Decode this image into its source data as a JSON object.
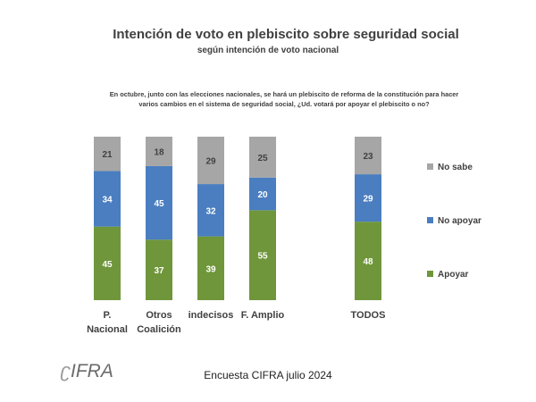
{
  "header": {
    "title": "Intención de voto en plebiscito sobre seguridad social",
    "subtitle": "según intención de voto nacional",
    "question": "En octubre, junto con las elecciones nacionales, se hará un plebiscito de reforma de la constitución para hacer varios cambios en el sistema de seguridad social, ¿Ud. votará por apoyar el plebiscito o no?"
  },
  "footer": {
    "source": "Encuesta CIFRA julio 2024",
    "logo_text": "IFRA"
  },
  "chart_data": {
    "type": "bar",
    "stacked": true,
    "categories": [
      [
        "P.",
        "Nacional"
      ],
      [
        "Otros",
        "Coalición"
      ],
      [
        "indecisos"
      ],
      [
        "F. Amplio"
      ],
      [
        "TODOS"
      ]
    ],
    "series": [
      {
        "name": "Apoyar",
        "color": "#6f963a",
        "values": [
          45,
          37,
          39,
          55,
          48
        ]
      },
      {
        "name": "No apoyar",
        "color": "#4a7ec0",
        "values": [
          34,
          45,
          32,
          20,
          29
        ]
      },
      {
        "name": "No sabe",
        "color": "#a6a6a6",
        "values": [
          21,
          18,
          29,
          25,
          23
        ]
      }
    ],
    "legend": [
      "No sabe",
      "No apoyar",
      "Apoyar"
    ],
    "legend_position": "right",
    "ylim": [
      0,
      100
    ],
    "grid": false
  }
}
